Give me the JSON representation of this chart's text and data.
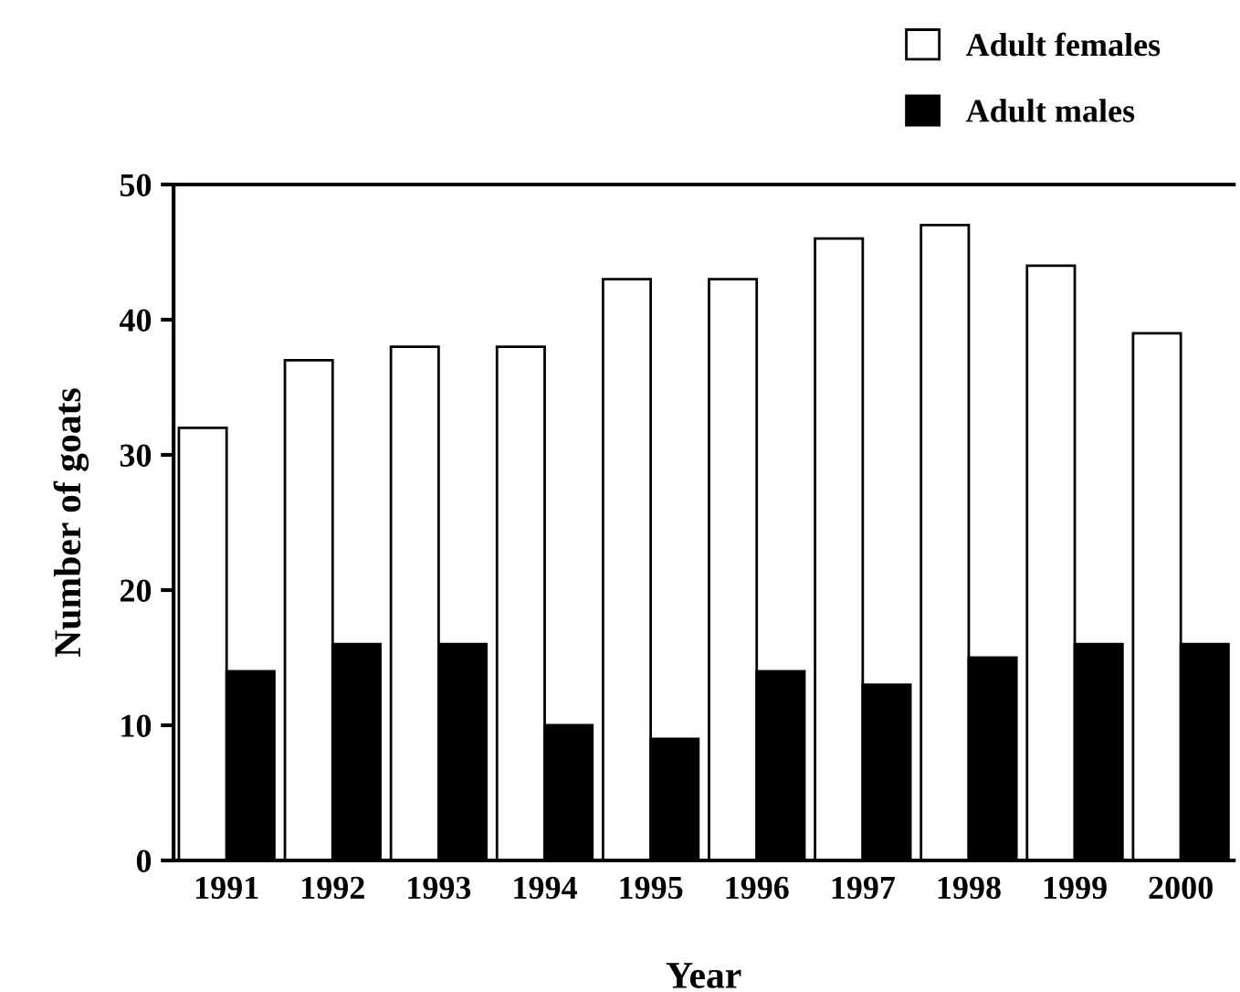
{
  "chart_data": {
    "type": "bar",
    "xlabel": "Year",
    "ylabel": "Number of goats",
    "categories": [
      "1991",
      "1992",
      "1993",
      "1994",
      "1995",
      "1996",
      "1997",
      "1998",
      "1999",
      "2000"
    ],
    "series": [
      {
        "name": "Adult females",
        "color": "#ffffff",
        "values": [
          32,
          37,
          38,
          38,
          43,
          43,
          46,
          47,
          44,
          39
        ]
      },
      {
        "name": "Adult males",
        "color": "#000000",
        "values": [
          14,
          16,
          16,
          10,
          9,
          14,
          13,
          15,
          16,
          16
        ]
      }
    ],
    "ylim": [
      0,
      50
    ],
    "yticks": [
      0,
      10,
      20,
      30,
      40,
      50
    ],
    "grid": false,
    "legend": "top right"
  }
}
